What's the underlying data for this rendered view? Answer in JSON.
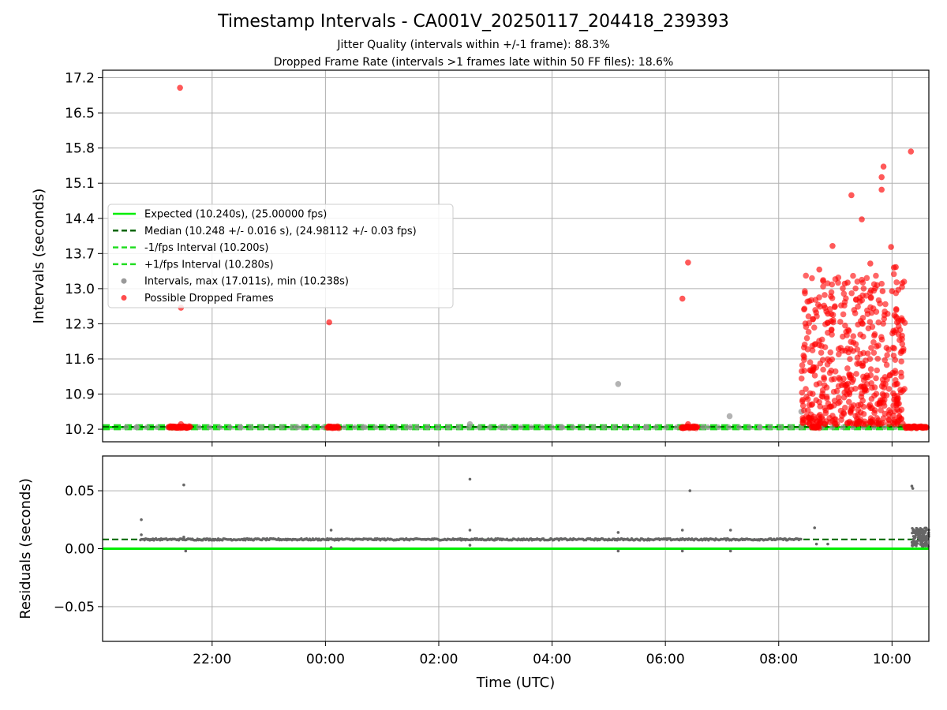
{
  "figure": {
    "title": "Timestamp Intervals - CA001V_20250117_204418_239393",
    "subtitle1": "Jitter Quality (intervals within +/-1 frame): 88.3%",
    "subtitle2": "Dropped Frame Rate (intervals >1 frames late within 50 FF files): 18.6%"
  },
  "colors": {
    "expected": "#00ee00",
    "median": "#006400",
    "bounds": "#22dd22",
    "intervals": "#999999",
    "dropped": "#ff0000",
    "residuals": "#666666",
    "grid": "#b0b0b0"
  },
  "chart_data": [
    {
      "type": "scatter",
      "ylabel": "Intervals (seconds)",
      "ylim": [
        9.95,
        17.35
      ],
      "xlim": [
        "20:04",
        "10:39"
      ],
      "yticks": [
        "10.2",
        "10.9",
        "11.6",
        "12.3",
        "13.0",
        "13.7",
        "14.4",
        "15.1",
        "15.8",
        "16.5",
        "17.2"
      ],
      "xticks": [
        "22:00",
        "00:00",
        "02:00",
        "04:00",
        "06:00",
        "08:00",
        "10:00"
      ],
      "grid": true,
      "legend_position": "center-left",
      "legend": [
        {
          "label": "Expected (10.240s), (25.00000 fps)",
          "style": "solid-line"
        },
        {
          "label": "Median (10.248 +/- 0.016 s), (24.98112 +/- 0.03 fps)",
          "style": "dashed-line"
        },
        {
          "label": "-1/fps Interval (10.200s)",
          "style": "dashed-line"
        },
        {
          "label": "+1/fps Interval (10.280s)",
          "style": "dashed-line"
        },
        {
          "label": "Intervals, max (17.011s), min (10.238s)",
          "style": "gray-dot"
        },
        {
          "label": "Possible Dropped Frames",
          "style": "red-dot"
        }
      ],
      "reference_lines": {
        "expected": 10.24,
        "median": 10.248,
        "minus_1_fps": 10.2,
        "plus_1_fps": 10.28
      },
      "series": [
        {
          "name": "Intervals, max (17.011s), min (10.238s)",
          "points": [
            [
              "20:40",
              10.24
            ],
            [
              "21:20",
              10.24
            ],
            [
              "22:30",
              10.24
            ],
            [
              "23:30",
              10.24
            ],
            [
              "00:40",
              10.24
            ],
            [
              "01:30",
              10.24
            ],
            [
              "02:33",
              10.3
            ],
            [
              "03:10",
              10.24
            ],
            [
              "04:10",
              10.24
            ],
            [
              "05:10",
              11.1
            ],
            [
              "05:40",
              10.24
            ],
            [
              "06:40",
              10.24
            ],
            [
              "07:08",
              10.46
            ],
            [
              "07:40",
              10.24
            ],
            [
              "08:24",
              10.55
            ]
          ]
        },
        {
          "name": "Possible Dropped Frames",
          "points": [
            [
              "21:26",
              17.0
            ],
            [
              "21:27",
              12.62
            ],
            [
              "21:27",
              10.3
            ],
            [
              "00:04",
              12.33
            ],
            [
              "06:18",
              12.8
            ],
            [
              "06:24",
              13.52
            ],
            [
              "06:24",
              10.3
            ],
            [
              "09:17",
              14.86
            ],
            [
              "09:37",
              13.5
            ],
            [
              "09:49",
              15.22
            ],
            [
              "09:49",
              14.97
            ],
            [
              "09:51",
              15.43
            ],
            [
              "09:59",
              13.83
            ],
            [
              "10:02",
              13.42
            ],
            [
              "10:04",
              13.43
            ],
            [
              "10:20",
              15.73
            ],
            [
              "08:43",
              13.38
            ],
            [
              "08:57",
              13.85
            ],
            [
              "09:10",
              13.1
            ],
            [
              "09:13",
              13.12
            ],
            [
              "09:28",
              14.38
            ],
            [
              "08:52",
              12.5
            ],
            [
              "09:50",
              12.95
            ],
            [
              "10:00",
              12.95
            ]
          ]
        }
      ],
      "dense_regions": [
        {
          "name": "Possible Dropped Frames",
          "series_y_on_baseline": 10.24,
          "x_ranges": [
            [
              "21:14",
              "21:37"
            ],
            [
              "00:02",
              "00:14"
            ],
            [
              "06:17",
              "06:34"
            ],
            [
              "08:35",
              "08:43"
            ],
            [
              "10:14",
              "10:37"
            ]
          ]
        },
        {
          "name": "Possible Dropped Frames",
          "x_range": [
            "08:24",
            "10:14"
          ],
          "y_range": [
            10.3,
            13.3
          ]
        }
      ]
    },
    {
      "type": "scatter",
      "ylabel": "Residuals (seconds)",
      "xlabel": "Time (UTC)",
      "ylim": [
        -0.08,
        0.08
      ],
      "yticks": [
        "−0.05",
        "0.00",
        "0.05"
      ],
      "xticks": [
        "22:00",
        "00:00",
        "02:00",
        "04:00",
        "06:00",
        "08:00",
        "10:00"
      ],
      "grid": true,
      "reference_lines": {
        "zero": 0.0,
        "median": 0.008
      },
      "series": [
        {
          "name": "Residuals",
          "points": [
            [
              "20:45",
              0.025
            ],
            [
              "20:45",
              0.012
            ],
            [
              "21:30",
              0.055
            ],
            [
              "21:30",
              0.01
            ],
            [
              "21:32",
              -0.002
            ],
            [
              "00:06",
              0.016
            ],
            [
              "00:06",
              0.001
            ],
            [
              "02:33",
              0.06
            ],
            [
              "02:33",
              0.016
            ],
            [
              "02:33",
              0.003
            ],
            [
              "05:10",
              0.014
            ],
            [
              "05:10",
              -0.002
            ],
            [
              "06:18",
              0.016
            ],
            [
              "06:18",
              -0.002
            ],
            [
              "06:26",
              0.05
            ],
            [
              "07:09",
              0.016
            ],
            [
              "07:09",
              -0.002
            ],
            [
              "08:38",
              0.018
            ],
            [
              "08:40",
              0.004
            ],
            [
              "08:52",
              0.004
            ],
            [
              "10:21",
              0.054
            ],
            [
              "10:22",
              0.052
            ]
          ]
        }
      ],
      "dense_regions": [
        {
          "name": "Residuals",
          "x_range": [
            "20:44",
            "08:24"
          ],
          "y_approx": 0.008
        },
        {
          "name": "Residuals",
          "x_range": [
            "10:21",
            "10:39"
          ],
          "y_range": [
            0.002,
            0.018
          ]
        }
      ]
    }
  ]
}
